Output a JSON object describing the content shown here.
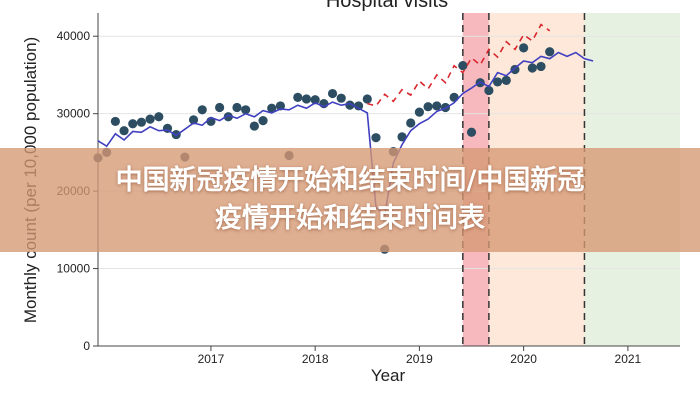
{
  "banner": {
    "line1": "中国新冠疫情开始和结束时间/中国新冠",
    "line2": "疫情开始和结束时间表"
  },
  "chart_data": {
    "type": "scatter",
    "title": "Hospital visits",
    "xlabel": "Year",
    "ylabel": "Monthly count (per 10,000 population)",
    "x_ticks": [
      "2017",
      "2018",
      "2019",
      "2020",
      "2021"
    ],
    "y_ticks": [
      "0",
      "10000",
      "20000",
      "30000",
      "40000"
    ],
    "xlim": [
      "2016-06",
      "2022-01"
    ],
    "ylim": [
      0,
      43000
    ],
    "grid": true,
    "shaded_periods": [
      {
        "start": "2019-12",
        "end": "2020-03",
        "color": "#f7b9bd"
      },
      {
        "start": "2020-03",
        "end": "2021-02",
        "color": "#fde8d9"
      },
      {
        "start": "2021-02",
        "end": "2022-01",
        "color": "#e7f1e2"
      }
    ],
    "vertical_lines": [
      "2019-12",
      "2020-03",
      "2021-02"
    ],
    "series": [
      {
        "kind": "points",
        "color": "#2d4e62",
        "points": [
          [
            "2016-06",
            24300
          ],
          [
            "2016-07",
            25000
          ],
          [
            "2016-08",
            29000
          ],
          [
            "2016-09",
            27800
          ],
          [
            "2016-10",
            28700
          ],
          [
            "2016-11",
            28900
          ],
          [
            "2016-12",
            29300
          ],
          [
            "2017-01",
            29600
          ],
          [
            "2017-02",
            28100
          ],
          [
            "2017-03",
            27300
          ],
          [
            "2017-04",
            24400
          ],
          [
            "2017-05",
            29200
          ],
          [
            "2017-06",
            30500
          ],
          [
            "2017-07",
            29000
          ],
          [
            "2017-08",
            30800
          ],
          [
            "2017-09",
            29600
          ],
          [
            "2017-10",
            30800
          ],
          [
            "2017-11",
            30500
          ],
          [
            "2017-12",
            28400
          ],
          [
            "2018-01",
            29100
          ],
          [
            "2018-02",
            30700
          ],
          [
            "2018-03",
            31000
          ],
          [
            "2018-04",
            24600
          ],
          [
            "2018-05",
            32100
          ],
          [
            "2018-06",
            31900
          ],
          [
            "2018-07",
            31800
          ],
          [
            "2018-08",
            31300
          ],
          [
            "2018-09",
            32600
          ],
          [
            "2018-10",
            32000
          ],
          [
            "2018-11",
            31100
          ],
          [
            "2018-12",
            31000
          ],
          [
            "2019-01",
            31900
          ],
          [
            "2019-02",
            26900
          ],
          [
            "2019-03",
            12500
          ],
          [
            "2019-04",
            25100
          ],
          [
            "2019-05",
            27000
          ],
          [
            "2019-06",
            28800
          ],
          [
            "2019-07",
            30200
          ],
          [
            "2019-08",
            30900
          ],
          [
            "2019-09",
            31000
          ],
          [
            "2019-10",
            30800
          ],
          [
            "2019-11",
            32100
          ],
          [
            "2019-12",
            36200
          ],
          [
            "2020-01",
            27600
          ],
          [
            "2020-02",
            34000
          ],
          [
            "2020-03",
            33000
          ],
          [
            "2020-04",
            34100
          ],
          [
            "2020-05",
            34300
          ],
          [
            "2020-06",
            35700
          ],
          [
            "2020-07",
            38500
          ],
          [
            "2020-08",
            35900
          ],
          [
            "2020-09",
            36100
          ],
          [
            "2020-10",
            38000
          ]
        ]
      },
      {
        "kind": "fitted",
        "color": "#4040c0",
        "points": [
          [
            "2016-06",
            26500
          ],
          [
            "2016-07",
            25800
          ],
          [
            "2016-08",
            27400
          ],
          [
            "2016-09",
            26600
          ],
          [
            "2016-10",
            27700
          ],
          [
            "2016-11",
            27600
          ],
          [
            "2016-12",
            28300
          ],
          [
            "2017-01",
            27800
          ],
          [
            "2017-02",
            27900
          ],
          [
            "2017-03",
            27200
          ],
          [
            "2017-04",
            28000
          ],
          [
            "2017-05",
            28800
          ],
          [
            "2017-06",
            28500
          ],
          [
            "2017-07",
            29500
          ],
          [
            "2017-08",
            29100
          ],
          [
            "2017-09",
            29800
          ],
          [
            "2017-10",
            29400
          ],
          [
            "2017-11",
            30000
          ],
          [
            "2017-12",
            29600
          ],
          [
            "2018-01",
            30400
          ],
          [
            "2018-02",
            30100
          ],
          [
            "2018-03",
            30600
          ],
          [
            "2018-04",
            30500
          ],
          [
            "2018-05",
            31100
          ],
          [
            "2018-06",
            30700
          ],
          [
            "2018-07",
            31400
          ],
          [
            "2018-08",
            30900
          ],
          [
            "2018-09",
            31500
          ],
          [
            "2018-10",
            31100
          ],
          [
            "2018-11",
            31300
          ],
          [
            "2018-12",
            30700
          ],
          [
            "2019-01",
            30100
          ],
          [
            "2019-02",
            17900
          ],
          [
            "2019-03",
            16900
          ],
          [
            "2019-04",
            23600
          ],
          [
            "2019-05",
            26000
          ],
          [
            "2019-06",
            27800
          ],
          [
            "2019-07",
            28700
          ],
          [
            "2019-08",
            29300
          ],
          [
            "2019-09",
            30300
          ],
          [
            "2019-10",
            30700
          ],
          [
            "2019-11",
            31400
          ],
          [
            "2019-12",
            32600
          ],
          [
            "2020-01",
            33300
          ],
          [
            "2020-02",
            34100
          ],
          [
            "2020-03",
            33500
          ],
          [
            "2020-04",
            35300
          ],
          [
            "2020-05",
            34900
          ],
          [
            "2020-06",
            35900
          ],
          [
            "2020-07",
            36800
          ],
          [
            "2020-08",
            36600
          ],
          [
            "2020-09",
            37400
          ],
          [
            "2020-10",
            37100
          ],
          [
            "2020-11",
            37900
          ],
          [
            "2020-12",
            37400
          ],
          [
            "2021-01",
            37900
          ],
          [
            "2021-02",
            37100
          ],
          [
            "2021-03",
            36800
          ]
        ]
      },
      {
        "kind": "counterfactual",
        "color": "#d8272d",
        "points": [
          [
            "2019-01",
            31300
          ],
          [
            "2019-02",
            31000
          ],
          [
            "2019-03",
            32500
          ],
          [
            "2019-04",
            31600
          ],
          [
            "2019-05",
            33100
          ],
          [
            "2019-06",
            32400
          ],
          [
            "2019-07",
            34200
          ],
          [
            "2019-08",
            33200
          ],
          [
            "2019-09",
            35000
          ],
          [
            "2019-10",
            34000
          ],
          [
            "2019-11",
            36200
          ],
          [
            "2019-12",
            35300
          ],
          [
            "2020-01",
            37200
          ],
          [
            "2020-02",
            36300
          ],
          [
            "2020-03",
            38300
          ],
          [
            "2020-04",
            37300
          ],
          [
            "2020-05",
            39300
          ],
          [
            "2020-06",
            38300
          ],
          [
            "2020-07",
            40200
          ],
          [
            "2020-08",
            39400
          ],
          [
            "2020-09",
            41500
          ],
          [
            "2020-10",
            40700
          ]
        ]
      }
    ]
  }
}
